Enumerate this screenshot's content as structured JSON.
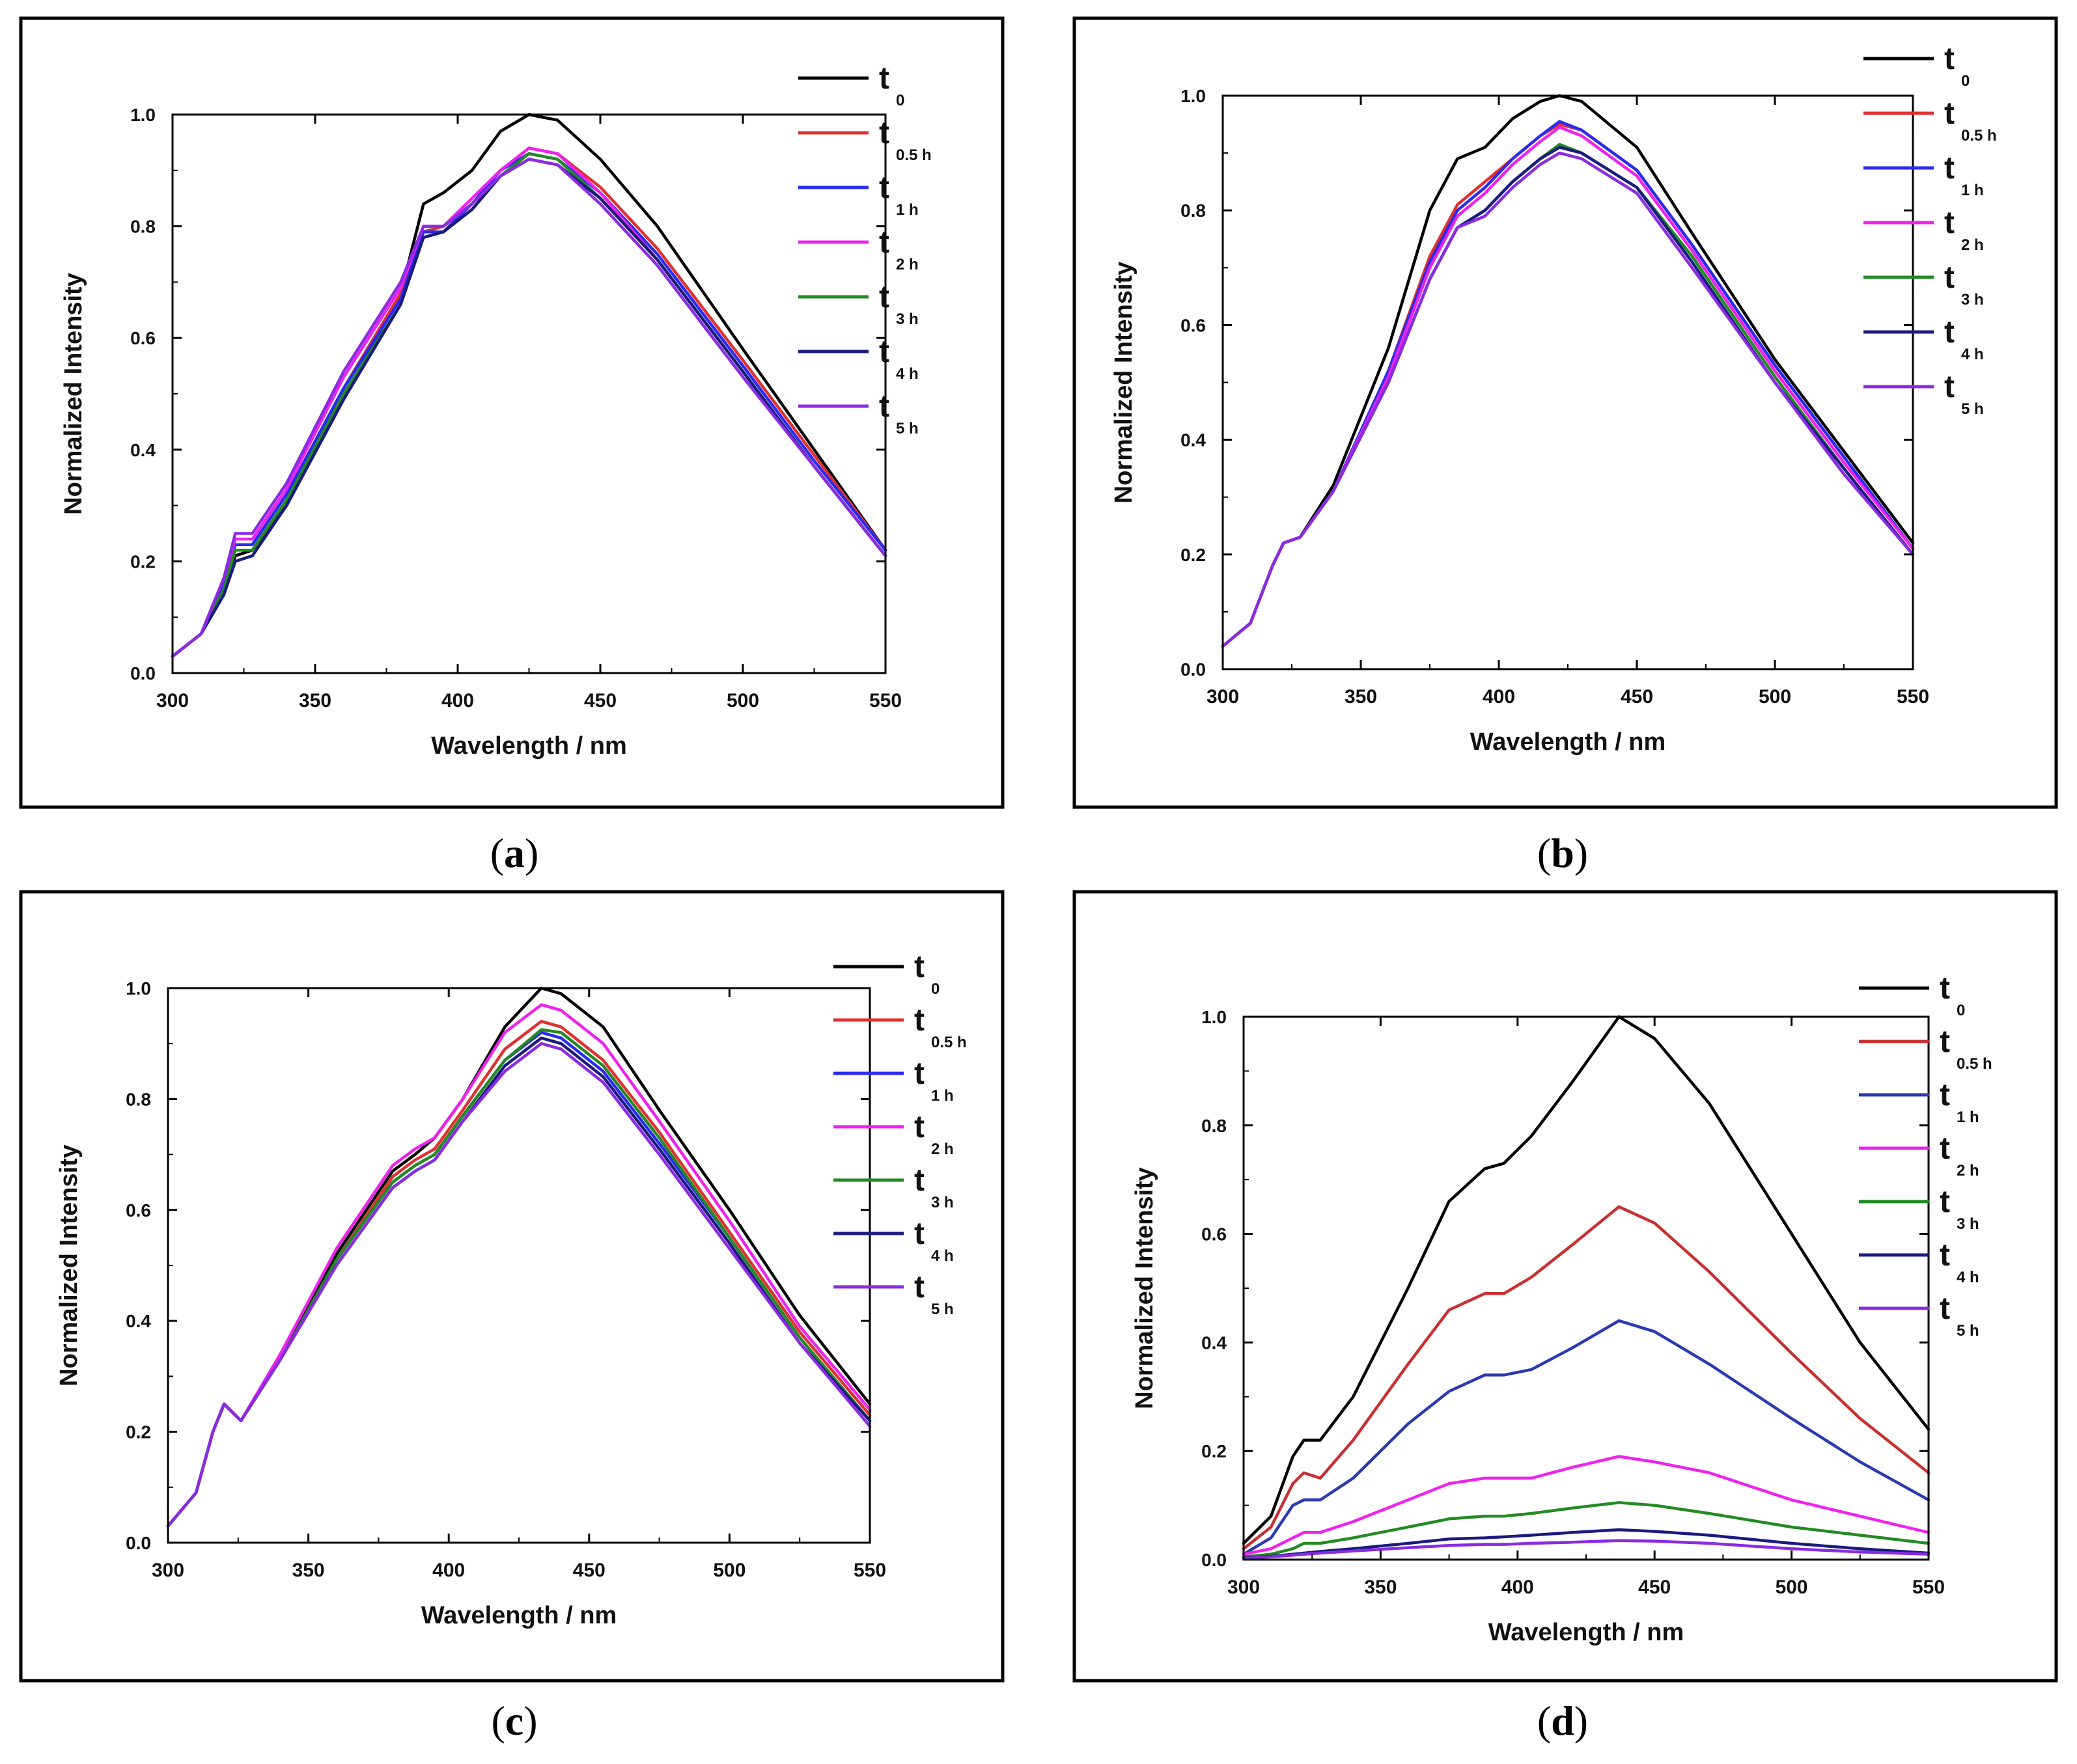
{
  "chart_data": [
    {
      "type": "line",
      "caption": "a",
      "xlabel": "Wavelength / nm",
      "ylabel": "Normalized Intensity",
      "xlim": [
        300,
        550
      ],
      "ylim": [
        0.0,
        1.0
      ],
      "xticks": [
        300,
        350,
        400,
        450,
        500,
        550
      ],
      "yticks": [
        0.0,
        0.2,
        0.4,
        0.6,
        0.8,
        1.0
      ],
      "ytick_labels": [
        "0.0",
        "0.2",
        "0.4",
        "0.6",
        "0.8",
        "1.0"
      ],
      "x": [
        300,
        310,
        318,
        322,
        328,
        340,
        360,
        380,
        388,
        395,
        405,
        415,
        425,
        435,
        450,
        470,
        500,
        525,
        550
      ],
      "series": [
        {
          "name": "0",
          "color": "#000000",
          "values": [
            0.03,
            0.07,
            0.15,
            0.21,
            0.22,
            0.3,
            0.49,
            0.68,
            0.84,
            0.86,
            0.9,
            0.97,
            1.0,
            0.99,
            0.92,
            0.8,
            0.58,
            0.4,
            0.22
          ]
        },
        {
          "name": "0.5 h",
          "color": "#e03030",
          "values": [
            0.03,
            0.07,
            0.16,
            0.23,
            0.23,
            0.32,
            0.51,
            0.68,
            0.79,
            0.8,
            0.84,
            0.9,
            0.94,
            0.93,
            0.87,
            0.76,
            0.56,
            0.39,
            0.22
          ]
        },
        {
          "name": "1 h",
          "color": "#2a2af0",
          "values": [
            0.03,
            0.07,
            0.16,
            0.23,
            0.23,
            0.32,
            0.51,
            0.67,
            0.79,
            0.79,
            0.84,
            0.9,
            0.93,
            0.92,
            0.86,
            0.75,
            0.55,
            0.38,
            0.22
          ]
        },
        {
          "name": "2 h",
          "color": "#ee22ee",
          "values": [
            0.03,
            0.07,
            0.17,
            0.24,
            0.24,
            0.33,
            0.53,
            0.69,
            0.8,
            0.8,
            0.85,
            0.9,
            0.94,
            0.93,
            0.86,
            0.74,
            0.54,
            0.37,
            0.21
          ]
        },
        {
          "name": "3 h",
          "color": "#238a23",
          "values": [
            0.03,
            0.07,
            0.15,
            0.22,
            0.22,
            0.31,
            0.5,
            0.66,
            0.78,
            0.79,
            0.83,
            0.89,
            0.93,
            0.92,
            0.85,
            0.74,
            0.54,
            0.37,
            0.21
          ]
        },
        {
          "name": "4 h",
          "color": "#1a1a80",
          "values": [
            0.03,
            0.07,
            0.14,
            0.2,
            0.21,
            0.3,
            0.49,
            0.66,
            0.78,
            0.79,
            0.83,
            0.89,
            0.92,
            0.91,
            0.85,
            0.74,
            0.54,
            0.37,
            0.21
          ]
        },
        {
          "name": "5 h",
          "color": "#8a2be2",
          "values": [
            0.03,
            0.07,
            0.17,
            0.25,
            0.25,
            0.34,
            0.54,
            0.7,
            0.8,
            0.8,
            0.84,
            0.89,
            0.92,
            0.91,
            0.84,
            0.73,
            0.53,
            0.37,
            0.21
          ]
        }
      ],
      "legend": [
        "t",
        "0",
        "t",
        "0.5 h",
        "t",
        "1 h",
        "t",
        "2 h",
        "t",
        "3 h",
        "t",
        "4 h",
        "t",
        "5 h"
      ]
    },
    {
      "type": "line",
      "caption": "b",
      "xlabel": "Wavelength / nm",
      "ylabel": "Normalized Intensity",
      "xlim": [
        300,
        550
      ],
      "ylim": [
        0.0,
        1.0
      ],
      "xticks": [
        300,
        350,
        400,
        450,
        500,
        550
      ],
      "yticks": [
        0.0,
        0.2,
        0.4,
        0.6,
        0.8,
        1.0
      ],
      "ytick_labels": [
        "0.0",
        "0.2",
        "0.4",
        "0.6",
        "0.8",
        "1.0"
      ],
      "x": [
        300,
        310,
        318,
        322,
        328,
        340,
        360,
        375,
        385,
        395,
        405,
        415,
        422,
        430,
        450,
        470,
        500,
        525,
        550
      ],
      "series": [
        {
          "name": "0",
          "color": "#000000",
          "values": [
            0.04,
            0.08,
            0.18,
            0.22,
            0.23,
            0.32,
            0.56,
            0.8,
            0.89,
            0.91,
            0.96,
            0.99,
            1.0,
            0.99,
            0.91,
            0.76,
            0.54,
            0.38,
            0.22
          ]
        },
        {
          "name": "0.5 h",
          "color": "#e03030",
          "values": [
            0.04,
            0.08,
            0.18,
            0.22,
            0.23,
            0.31,
            0.52,
            0.72,
            0.81,
            0.85,
            0.89,
            0.93,
            0.95,
            0.94,
            0.87,
            0.74,
            0.53,
            0.37,
            0.21
          ]
        },
        {
          "name": "1 h",
          "color": "#2a2af0",
          "values": [
            0.04,
            0.08,
            0.18,
            0.22,
            0.23,
            0.31,
            0.52,
            0.71,
            0.8,
            0.84,
            0.89,
            0.93,
            0.955,
            0.94,
            0.87,
            0.74,
            0.53,
            0.37,
            0.21
          ]
        },
        {
          "name": "2 h",
          "color": "#ee22ee",
          "values": [
            0.04,
            0.08,
            0.18,
            0.22,
            0.23,
            0.31,
            0.51,
            0.7,
            0.79,
            0.83,
            0.88,
            0.92,
            0.945,
            0.93,
            0.86,
            0.73,
            0.52,
            0.36,
            0.21
          ]
        },
        {
          "name": "3 h",
          "color": "#238a23",
          "values": [
            0.04,
            0.08,
            0.18,
            0.22,
            0.23,
            0.31,
            0.5,
            0.68,
            0.77,
            0.8,
            0.85,
            0.89,
            0.915,
            0.9,
            0.84,
            0.72,
            0.51,
            0.35,
            0.2
          ]
        },
        {
          "name": "4 h",
          "color": "#1a1a80",
          "values": [
            0.04,
            0.08,
            0.18,
            0.22,
            0.23,
            0.31,
            0.5,
            0.68,
            0.77,
            0.8,
            0.85,
            0.89,
            0.91,
            0.9,
            0.84,
            0.71,
            0.5,
            0.35,
            0.2
          ]
        },
        {
          "name": "5 h",
          "color": "#8a2be2",
          "values": [
            0.04,
            0.08,
            0.18,
            0.22,
            0.23,
            0.31,
            0.5,
            0.68,
            0.77,
            0.79,
            0.84,
            0.88,
            0.9,
            0.89,
            0.83,
            0.7,
            0.5,
            0.34,
            0.2
          ]
        }
      ],
      "legend": [
        "t",
        "0",
        "t",
        "0.5 h",
        "t",
        "1 h",
        "t",
        "2 h",
        "t",
        "3 h",
        "t",
        "4 h",
        "t",
        "5 h"
      ]
    },
    {
      "type": "line",
      "caption": "c",
      "xlabel": "Wavelength / nm",
      "ylabel": "Normalized Intensity",
      "xlim": [
        300,
        550
      ],
      "ylim": [
        0.0,
        1.0
      ],
      "xticks": [
        300,
        350,
        400,
        450,
        500,
        550
      ],
      "yticks": [
        0.0,
        0.2,
        0.4,
        0.6,
        0.8,
        1.0
      ],
      "ytick_labels": [
        "0.0",
        "0.2",
        "0.4",
        "0.6",
        "0.8",
        "1.0"
      ],
      "x": [
        300,
        310,
        316,
        320,
        326,
        340,
        360,
        380,
        388,
        395,
        405,
        420,
        433,
        440,
        455,
        475,
        500,
        525,
        550
      ],
      "series": [
        {
          "name": "0",
          "color": "#000000",
          "values": [
            0.03,
            0.09,
            0.2,
            0.25,
            0.22,
            0.33,
            0.52,
            0.67,
            0.7,
            0.73,
            0.8,
            0.93,
            1.0,
            0.99,
            0.93,
            0.78,
            0.6,
            0.41,
            0.25
          ]
        },
        {
          "name": "0.5 h",
          "color": "#e03030",
          "values": [
            0.03,
            0.09,
            0.2,
            0.25,
            0.22,
            0.33,
            0.51,
            0.66,
            0.69,
            0.71,
            0.78,
            0.89,
            0.94,
            0.93,
            0.87,
            0.74,
            0.56,
            0.38,
            0.23
          ]
        },
        {
          "name": "1 h",
          "color": "#2a2af0",
          "values": [
            0.03,
            0.09,
            0.2,
            0.25,
            0.22,
            0.33,
            0.51,
            0.65,
            0.68,
            0.7,
            0.77,
            0.87,
            0.92,
            0.91,
            0.85,
            0.72,
            0.55,
            0.37,
            0.22
          ]
        },
        {
          "name": "2 h",
          "color": "#ee22ee",
          "values": [
            0.03,
            0.09,
            0.2,
            0.25,
            0.22,
            0.34,
            0.53,
            0.68,
            0.71,
            0.73,
            0.8,
            0.92,
            0.97,
            0.96,
            0.9,
            0.76,
            0.58,
            0.39,
            0.24
          ]
        },
        {
          "name": "3 h",
          "color": "#238a23",
          "values": [
            0.03,
            0.09,
            0.2,
            0.25,
            0.22,
            0.33,
            0.51,
            0.65,
            0.68,
            0.7,
            0.77,
            0.87,
            0.925,
            0.92,
            0.86,
            0.73,
            0.55,
            0.37,
            0.22
          ]
        },
        {
          "name": "4 h",
          "color": "#1a1a80",
          "values": [
            0.03,
            0.09,
            0.2,
            0.25,
            0.22,
            0.33,
            0.5,
            0.64,
            0.67,
            0.69,
            0.76,
            0.86,
            0.91,
            0.9,
            0.84,
            0.71,
            0.54,
            0.36,
            0.22
          ]
        },
        {
          "name": "5 h",
          "color": "#8a2be2",
          "values": [
            0.03,
            0.09,
            0.2,
            0.25,
            0.22,
            0.33,
            0.5,
            0.64,
            0.67,
            0.69,
            0.76,
            0.85,
            0.9,
            0.89,
            0.83,
            0.7,
            0.53,
            0.36,
            0.21
          ]
        }
      ],
      "legend": [
        "t",
        "0",
        "t",
        "0.5 h",
        "t",
        "1 h",
        "t",
        "2 h",
        "t",
        "3 h",
        "t",
        "4 h",
        "t",
        "5 h"
      ]
    },
    {
      "type": "line",
      "caption": "d",
      "xlabel": "Wavelength / nm",
      "ylabel": "Normalized Intensity",
      "xlim": [
        300,
        550
      ],
      "ylim": [
        0.0,
        1.0
      ],
      "xticks": [
        300,
        350,
        400,
        450,
        500,
        550
      ],
      "yticks": [
        0.0,
        0.2,
        0.4,
        0.6,
        0.8,
        1.0
      ],
      "ytick_labels": [
        "0.0",
        "0.2",
        "0.4",
        "0.6",
        "0.8",
        "1.0"
      ],
      "x": [
        300,
        310,
        318,
        322,
        328,
        340,
        360,
        375,
        388,
        395,
        405,
        420,
        437,
        450,
        470,
        500,
        525,
        550
      ],
      "series": [
        {
          "name": "0",
          "color": "#000000",
          "values": [
            0.03,
            0.08,
            0.19,
            0.22,
            0.22,
            0.3,
            0.5,
            0.66,
            0.72,
            0.73,
            0.78,
            0.88,
            1.0,
            0.96,
            0.84,
            0.6,
            0.4,
            0.24
          ]
        },
        {
          "name": "0.5 h",
          "color": "#c83030",
          "values": [
            0.02,
            0.06,
            0.14,
            0.16,
            0.15,
            0.22,
            0.36,
            0.46,
            0.49,
            0.49,
            0.52,
            0.58,
            0.65,
            0.62,
            0.53,
            0.38,
            0.26,
            0.16
          ]
        },
        {
          "name": "1 h",
          "color": "#2a3ab0",
          "values": [
            0.01,
            0.04,
            0.1,
            0.11,
            0.11,
            0.15,
            0.25,
            0.31,
            0.34,
            0.34,
            0.35,
            0.39,
            0.44,
            0.42,
            0.36,
            0.26,
            0.18,
            0.11
          ]
        },
        {
          "name": "2 h",
          "color": "#ee22ee",
          "values": [
            0.01,
            0.02,
            0.04,
            0.05,
            0.05,
            0.07,
            0.11,
            0.14,
            0.15,
            0.15,
            0.15,
            0.17,
            0.19,
            0.18,
            0.16,
            0.11,
            0.08,
            0.05
          ]
        },
        {
          "name": "3 h",
          "color": "#238a23",
          "values": [
            0.005,
            0.01,
            0.02,
            0.03,
            0.03,
            0.04,
            0.06,
            0.075,
            0.08,
            0.08,
            0.085,
            0.095,
            0.105,
            0.1,
            0.085,
            0.06,
            0.045,
            0.03
          ]
        },
        {
          "name": "4 h",
          "color": "#1a1a80",
          "values": [
            0.003,
            0.006,
            0.01,
            0.012,
            0.015,
            0.02,
            0.03,
            0.038,
            0.04,
            0.042,
            0.045,
            0.05,
            0.055,
            0.052,
            0.045,
            0.03,
            0.02,
            0.012
          ]
        },
        {
          "name": "5 h",
          "color": "#8a2be2",
          "values": [
            0.002,
            0.005,
            0.008,
            0.01,
            0.012,
            0.016,
            0.022,
            0.026,
            0.028,
            0.028,
            0.03,
            0.032,
            0.035,
            0.034,
            0.03,
            0.02,
            0.014,
            0.01
          ]
        }
      ],
      "legend": [
        "t",
        "0",
        "t",
        "0.5 h",
        "t",
        "1 h",
        "t",
        "2 h",
        "t",
        "3 h",
        "t",
        "4 h",
        "t",
        "5 h"
      ]
    }
  ]
}
